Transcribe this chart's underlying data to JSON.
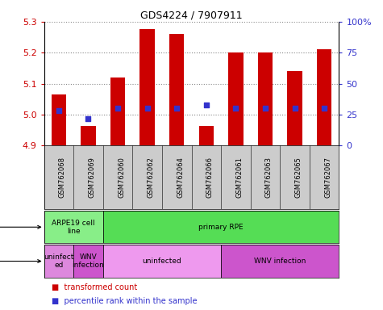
{
  "title": "GDS4224 / 7907911",
  "samples": [
    "GSM762068",
    "GSM762069",
    "GSM762060",
    "GSM762062",
    "GSM762064",
    "GSM762066",
    "GSM762061",
    "GSM762063",
    "GSM762065",
    "GSM762067"
  ],
  "transformed_counts": [
    5.065,
    4.965,
    5.12,
    5.275,
    5.26,
    4.965,
    5.2,
    5.2,
    5.14,
    5.21
  ],
  "percentile_ranks": [
    28,
    22,
    30,
    30,
    30,
    33,
    30,
    30,
    30,
    30
  ],
  "ylim_left": [
    4.9,
    5.3
  ],
  "ylim_right": [
    0,
    100
  ],
  "yticks_left": [
    4.9,
    5.0,
    5.1,
    5.2,
    5.3
  ],
  "yticks_right": [
    0,
    25,
    50,
    75,
    100
  ],
  "ytick_labels_right": [
    "0",
    "25",
    "50",
    "75",
    "100%"
  ],
  "bar_color": "#cc0000",
  "dot_color": "#3333cc",
  "bar_bottom": 4.9,
  "cell_type_groups": [
    {
      "label": "ARPE19 cell\nline",
      "start": 0,
      "end": 2,
      "color": "#88ee88"
    },
    {
      "label": "primary RPE",
      "start": 2,
      "end": 10,
      "color": "#55dd55"
    }
  ],
  "infection_groups": [
    {
      "label": "uninfect\ned",
      "start": 0,
      "end": 1,
      "color": "#dd88dd"
    },
    {
      "label": "WNV\ninfection",
      "start": 1,
      "end": 2,
      "color": "#cc55cc"
    },
    {
      "label": "uninfected",
      "start": 2,
      "end": 6,
      "color": "#ee99ee"
    },
    {
      "label": "WNV infection",
      "start": 6,
      "end": 10,
      "color": "#cc55cc"
    }
  ],
  "left_label_color": "#cc0000",
  "right_label_color": "#3333cc",
  "dotted_line_color": "#888888",
  "background_color": "#ffffff",
  "tick_area_color": "#cccccc"
}
